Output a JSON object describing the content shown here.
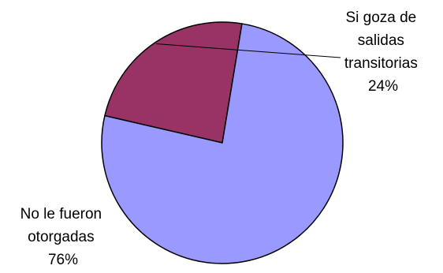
{
  "chart_data": {
    "type": "pie",
    "slices": [
      {
        "label_lines": [
          "Si goza de",
          "salidas",
          "transitorias"
        ],
        "percent_label": "24%",
        "value": 24,
        "color": "#993366"
      },
      {
        "label_lines": [
          "No le fueron",
          "otorgadas"
        ],
        "percent_label": "76%",
        "value": 76,
        "color": "#9999ff"
      }
    ],
    "legend": "none"
  }
}
